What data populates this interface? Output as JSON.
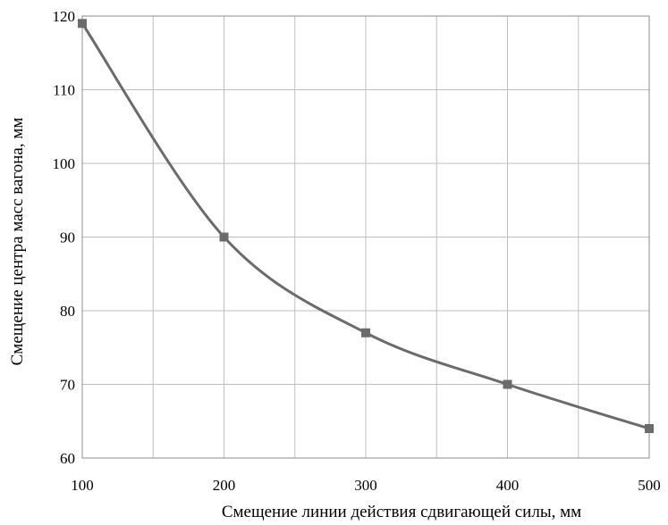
{
  "chart_data": {
    "type": "line",
    "title": "",
    "xlabel": "Смещение линии действия сдвигающей силы, мм",
    "ylabel": "Смещение центра масс вагона, мм",
    "xlim": [
      100,
      500
    ],
    "ylim": [
      60,
      120
    ],
    "x_ticks": [
      "100",
      "200",
      "300",
      "400",
      "500"
    ],
    "y_ticks": [
      "60",
      "70",
      "80",
      "90",
      "100",
      "110",
      "120"
    ],
    "grid": true,
    "smooth": true,
    "series": [
      {
        "x": [
          100,
          200,
          300,
          400,
          500
        ],
        "y": [
          119,
          90,
          77,
          70,
          64
        ]
      }
    ],
    "colors": {
      "line": "#6b6b6b",
      "marker": "#6b6b6b",
      "grid": "#bfbfbf",
      "frame": "#8c8c8c"
    }
  }
}
